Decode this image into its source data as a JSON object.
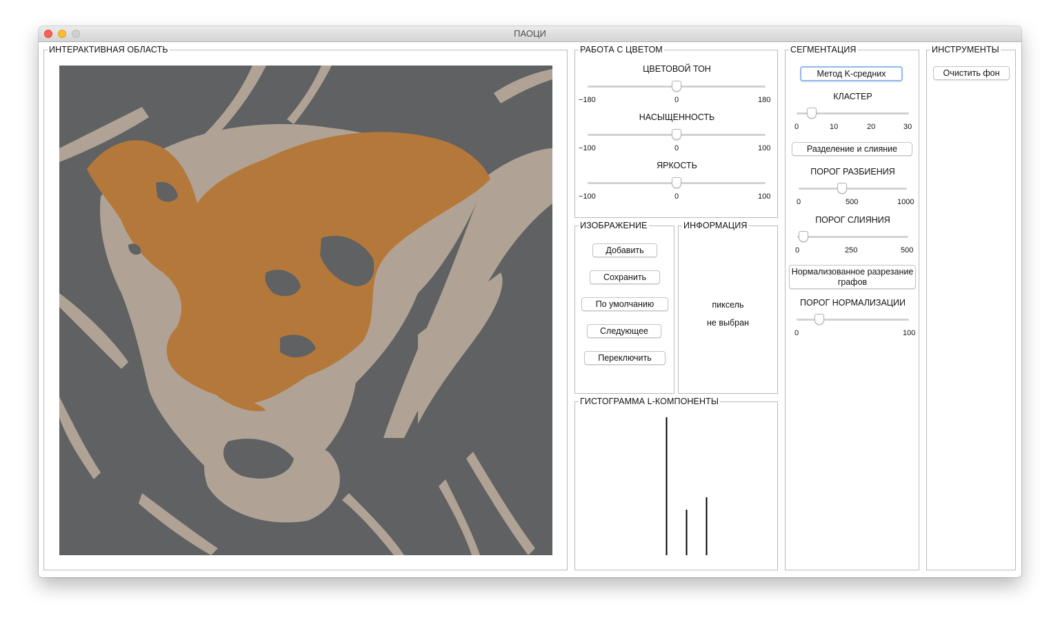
{
  "window": {
    "title": "ПАОЦИ"
  },
  "interactive_area": {
    "title": "ИНТЕРАКТИВНАЯ ОБЛАСТЬ"
  },
  "colors": {
    "image_background": "#5f6163",
    "image_light": "#b0a395",
    "image_orange": "#b5783b",
    "focus_ring": "#8fb8ef"
  },
  "color_panel": {
    "title": "РАБОТА С ЦВЕТОМ",
    "hue": {
      "label": "ЦВЕТОВОЙ ТОН",
      "min": "−180",
      "mid": "0",
      "max": "180",
      "value": 0
    },
    "saturation": {
      "label": "НАСЫЩЕННОСТЬ",
      "min": "−100",
      "mid": "0",
      "max": "100",
      "value": 0
    },
    "brightness": {
      "label": "ЯРКОСТЬ",
      "min": "−100",
      "mid": "0",
      "max": "100",
      "value": 0
    }
  },
  "image_panel": {
    "title": "ИЗОБРАЖЕНИЕ",
    "add": "Добавить",
    "save": "Сохранить",
    "default": "По умолчанию",
    "next": "Следующее",
    "switch": "Переключить"
  },
  "info_panel": {
    "title": "ИНФОРМАЦИЯ",
    "line1": "пиксель",
    "line2": "не выбран"
  },
  "histogram": {
    "title": "ГИСТОГРАММА L-КОМПОНЕНТЫ",
    "bars": [
      {
        "position": 0.45,
        "height": 1.0
      },
      {
        "position": 0.55,
        "height": 0.33
      },
      {
        "position": 0.65,
        "height": 0.42
      }
    ]
  },
  "segmentation": {
    "title": "СЕГМЕНТАЦИЯ",
    "kmeans": "Метод K-средних",
    "cluster": {
      "label": "КЛАСТЕР",
      "ticks": [
        "0",
        "10",
        "20",
        "30"
      ],
      "value": 4
    },
    "split_merge": "Разделение и слияние",
    "split_threshold": {
      "label": "ПОРОГ РАЗБИЕНИЯ",
      "ticks": [
        "0",
        "500",
        "1000"
      ],
      "value": 400
    },
    "merge_threshold": {
      "label": "ПОРОГ СЛИЯНИЯ",
      "ticks": [
        "0",
        "250",
        "500"
      ],
      "value": 15
    },
    "normalized_cut": "Нормализованное разрезание графов",
    "normalized_threshold": {
      "label": "ПОРОГ НОРМАЛИЗАЦИИ",
      "ticks": [
        "0",
        "100"
      ],
      "value": 20
    }
  },
  "tools": {
    "title": "ИНСТРУМЕНТЫ",
    "clear_background": "Очистить фон"
  }
}
